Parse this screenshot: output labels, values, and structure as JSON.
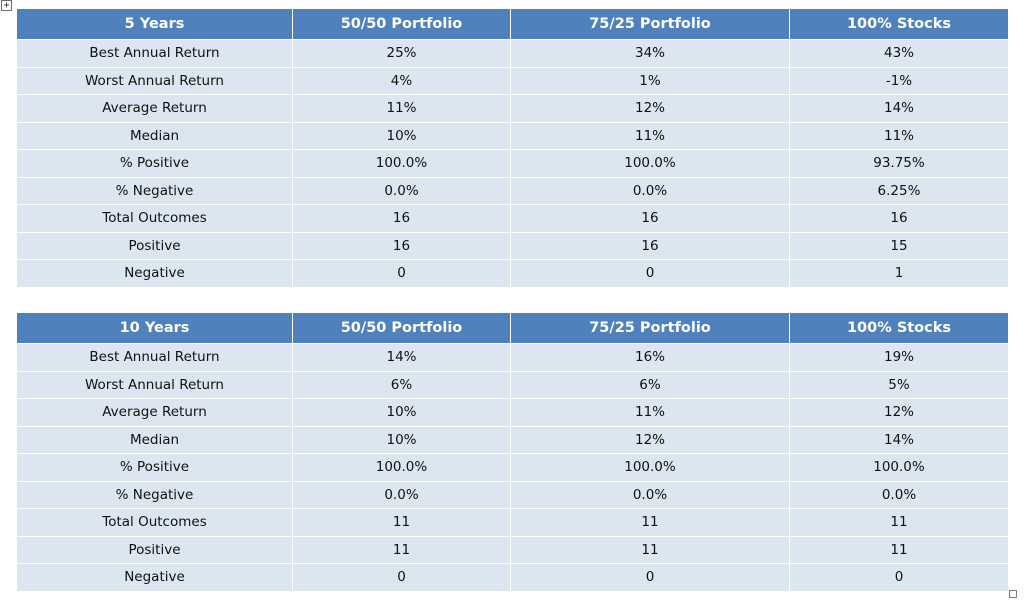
{
  "handles": {
    "move_glyph": "+"
  },
  "tables": [
    {
      "header": [
        "5 Years",
        "50/50 Portfolio",
        "75/25 Portfolio",
        "100% Stocks"
      ],
      "rows": [
        [
          "Best Annual Return",
          "25%",
          "34%",
          "43%"
        ],
        [
          "Worst Annual Return",
          "4%",
          "1%",
          "-1%"
        ],
        [
          "Average Return",
          "11%",
          "12%",
          "14%"
        ],
        [
          "Median",
          "10%",
          "11%",
          "11%"
        ],
        [
          "% Positive",
          "100.0%",
          "100.0%",
          "93.75%"
        ],
        [
          "% Negative",
          "0.0%",
          "0.0%",
          "6.25%"
        ],
        [
          "Total Outcomes",
          "16",
          "16",
          "16"
        ],
        [
          "Positive",
          "16",
          "16",
          "15"
        ],
        [
          "Negative",
          "0",
          "0",
          "1"
        ]
      ]
    },
    {
      "header": [
        "10 Years",
        "50/50 Portfolio",
        "75/25 Portfolio",
        "100% Stocks"
      ],
      "rows": [
        [
          "Best Annual Return",
          "14%",
          "16%",
          "19%"
        ],
        [
          "Worst Annual Return",
          "6%",
          "6%",
          "5%"
        ],
        [
          "Average Return",
          "10%",
          "11%",
          "12%"
        ],
        [
          "Median",
          "10%",
          "12%",
          "14%"
        ],
        [
          "% Positive",
          "100.0%",
          "100.0%",
          "100.0%"
        ],
        [
          "% Negative",
          "0.0%",
          "0.0%",
          "0.0%"
        ],
        [
          "Total Outcomes",
          "11",
          "11",
          "11"
        ],
        [
          "Positive",
          "11",
          "11",
          "11"
        ],
        [
          "Negative",
          "0",
          "0",
          "0"
        ]
      ]
    }
  ],
  "colors": {
    "header_fill": "#4f81bd",
    "header_text": "#ffffff",
    "row_fill": "#dce6f1",
    "cell_border": "#ffffff"
  }
}
